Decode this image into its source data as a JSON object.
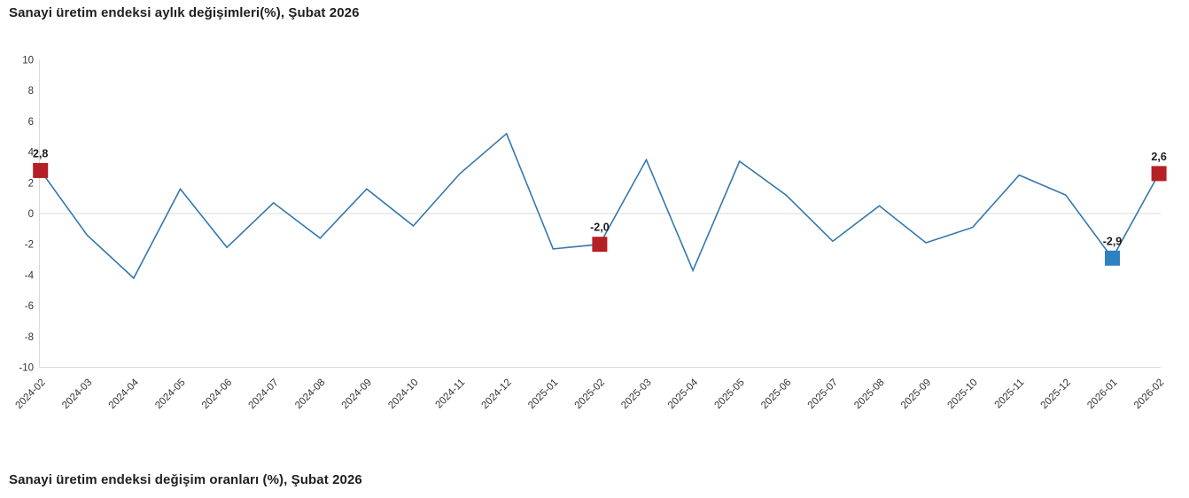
{
  "page": {
    "top_title": "Sanayi üretim endeksi aylık değişimleri(%), Şubat 2026",
    "bottom_title": "Sanayi üretim endeksi değişim oranları (%), Şubat 2026"
  },
  "chart_data": {
    "type": "line",
    "title": "Sanayi üretim endeksi aylık değişimleri(%), Şubat 2026",
    "xlabel": "",
    "ylabel": "",
    "ylim": [
      -10,
      10
    ],
    "y_ticks": [
      10,
      8,
      6,
      4,
      2,
      0,
      -2,
      -4,
      -6,
      -8,
      -10
    ],
    "grid": "zero-line-only",
    "legend": "none",
    "categories": [
      "2024-02",
      "2024-03",
      "2024-04",
      "2024-05",
      "2024-06",
      "2024-07",
      "2024-08",
      "2024-09",
      "2024-10",
      "2024-11",
      "2024-12",
      "2025-01",
      "2025-02",
      "2025-03",
      "2025-04",
      "2025-05",
      "2025-06",
      "2025-07",
      "2025-08",
      "2025-09",
      "2025-10",
      "2025-11",
      "2025-12",
      "2026-01",
      "2026-02"
    ],
    "values": [
      2.8,
      -1.4,
      -4.2,
      1.6,
      -2.2,
      0.7,
      -1.6,
      1.6,
      -0.8,
      2.6,
      5.2,
      -2.3,
      -2.0,
      3.5,
      -3.7,
      3.4,
      1.2,
      -1.8,
      0.5,
      -1.9,
      -0.9,
      2.5,
      1.2,
      -2.9,
      2.6
    ],
    "highlight_points": [
      {
        "category": "2024-02",
        "index": 0,
        "label": "2,8",
        "color": "#b42025"
      },
      {
        "category": "2025-02",
        "index": 12,
        "label": "-2,0",
        "color": "#b42025"
      },
      {
        "category": "2026-01",
        "index": 23,
        "label": "-2,9",
        "color": "#3081c0"
      },
      {
        "category": "2026-02",
        "index": 24,
        "label": "2,6",
        "color": "#b42025"
      }
    ],
    "colors": {
      "line": "#3378ad",
      "axis": "#d9d9d9",
      "zero_gridline": "#d9d9d9",
      "tick_label": "#333333",
      "data_label": "#1a1a1a"
    }
  }
}
